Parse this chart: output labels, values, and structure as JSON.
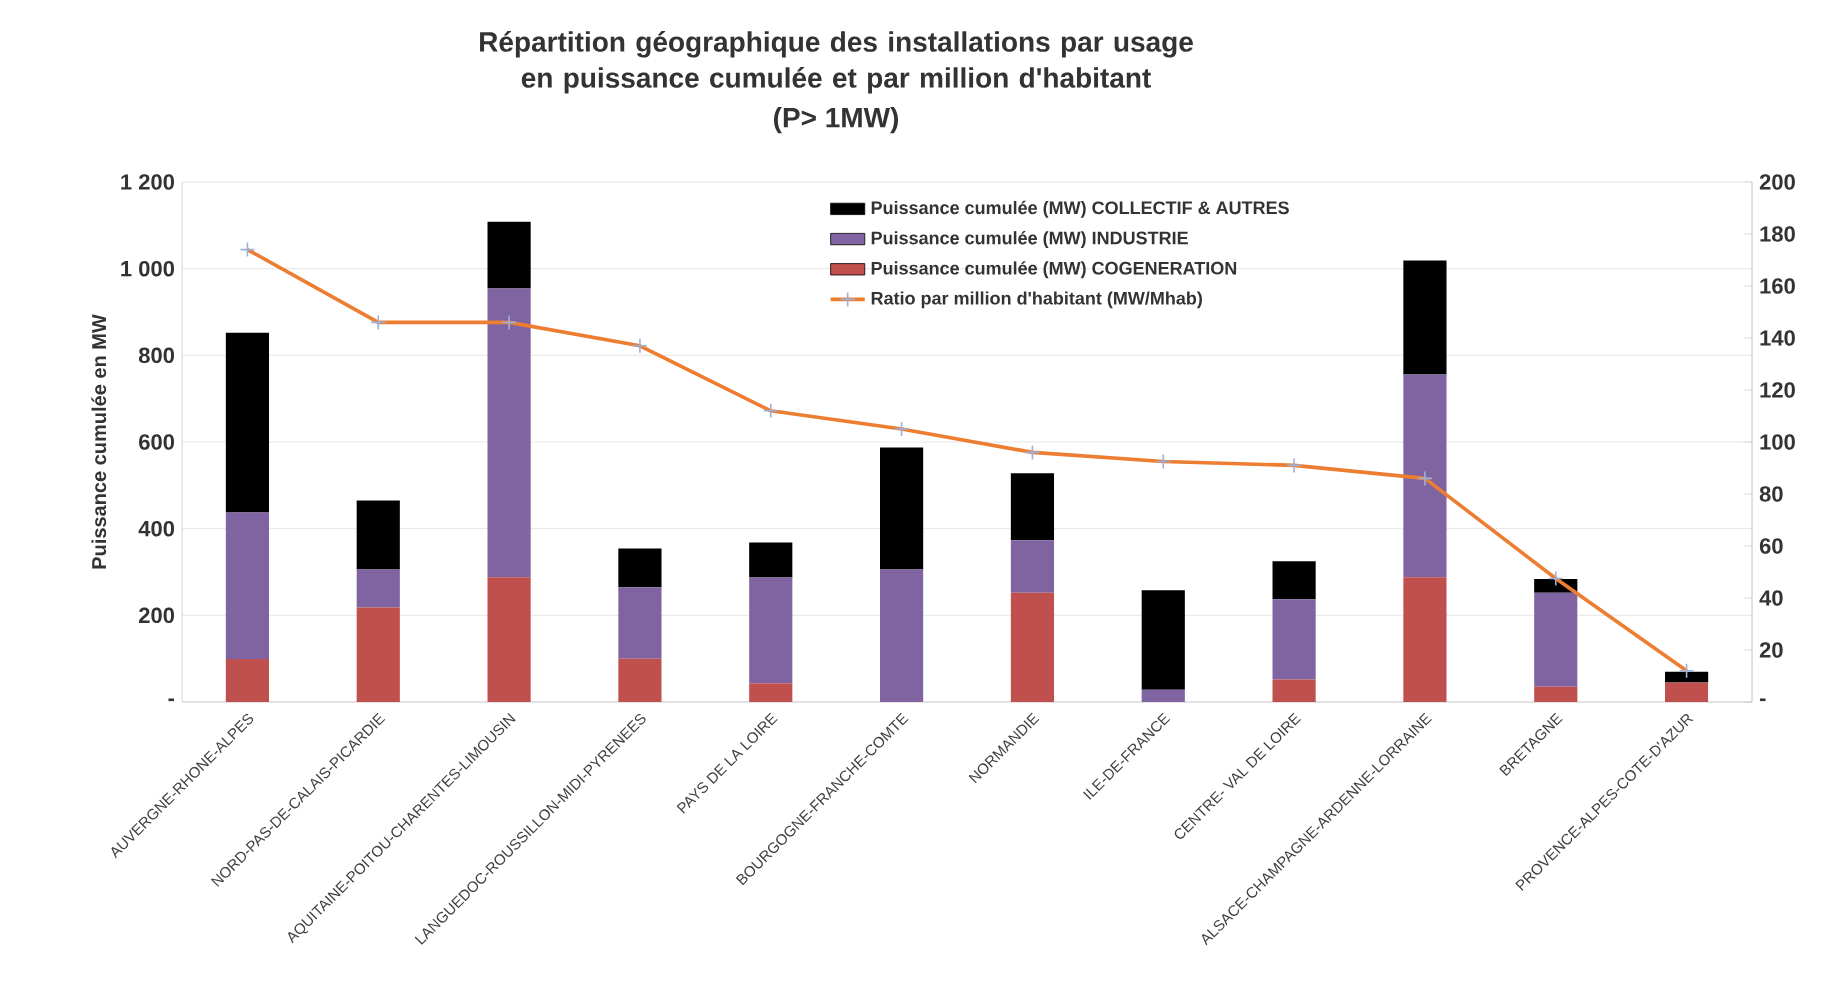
{
  "chart_data": {
    "type": "bar",
    "stacked": true,
    "title": "Répartition géographique des installations par usage en puissance cumulée et par million d'habitant",
    "subtitle": "(P> 1MW)",
    "ylabel": "Puissance cumulée en MW",
    "categories": [
      "AUVERGNE-RHONE-ALPES",
      "NORD-PAS-DE-CALAIS-PICARDIE",
      "AQUITAINE-POITOU-CHARENTES-LIMOUSIN",
      "LANGUEDOC-ROUSSILLON-MIDI-PYRENEES",
      "PAYS DE LA LOIRE",
      "BOURGOGNE-FRANCHE-COMTE",
      "NORMANDIE",
      "ILE-DE-FRANCE",
      "CENTRE- VAL DE LOIRE",
      "ALSACE-CHAMPAGNE-ARDENNE-LORRAINE",
      "BRETAGNE",
      "PROVENCE-ALPES-COTE-D'AZUR"
    ],
    "series": [
      {
        "name": "Puissance cumulée (MW) COGENERATION",
        "color": "#c0504d",
        "values": [
          99,
          218,
          288,
          100,
          43,
          0,
          252,
          0,
          52,
          288,
          35,
          45
        ]
      },
      {
        "name": "Puissance cumulée (MW) INDUSTRIE",
        "color": "#8064a2",
        "values": [
          338,
          88,
          666,
          165,
          244,
          306,
          121,
          28,
          185,
          468,
          217,
          0
        ]
      },
      {
        "name": "Puissance cumulée (MW) COLLECTIF & AUTRES",
        "color": "#000000",
        "values": [
          415,
          159,
          154,
          89,
          81,
          281,
          155,
          230,
          88,
          263,
          32,
          25
        ]
      },
      {
        "name": "Ratio par million d'habitant (MW/Mhab)",
        "type": "line",
        "axis": "y2",
        "color": "#ed7d31",
        "marker": "cross",
        "line_style": "solid",
        "values": [
          174,
          146,
          146,
          137,
          112,
          105,
          96,
          92.5,
          91,
          86,
          47.5,
          12
        ]
      }
    ],
    "ylim": [
      0,
      1200
    ],
    "yticks": [
      {
        "value": 0,
        "label": "-"
      },
      200,
      400,
      600,
      800,
      {
        "value": 1000,
        "label": "1 000"
      },
      {
        "value": 1200,
        "label": "1 200"
      }
    ],
    "y2lim": [
      0,
      200
    ],
    "y2ticks": [
      {
        "value": 0,
        "label": "-"
      },
      20,
      40,
      60,
      80,
      100,
      120,
      140,
      160,
      180,
      200
    ],
    "grid": "y",
    "legend": "top"
  }
}
